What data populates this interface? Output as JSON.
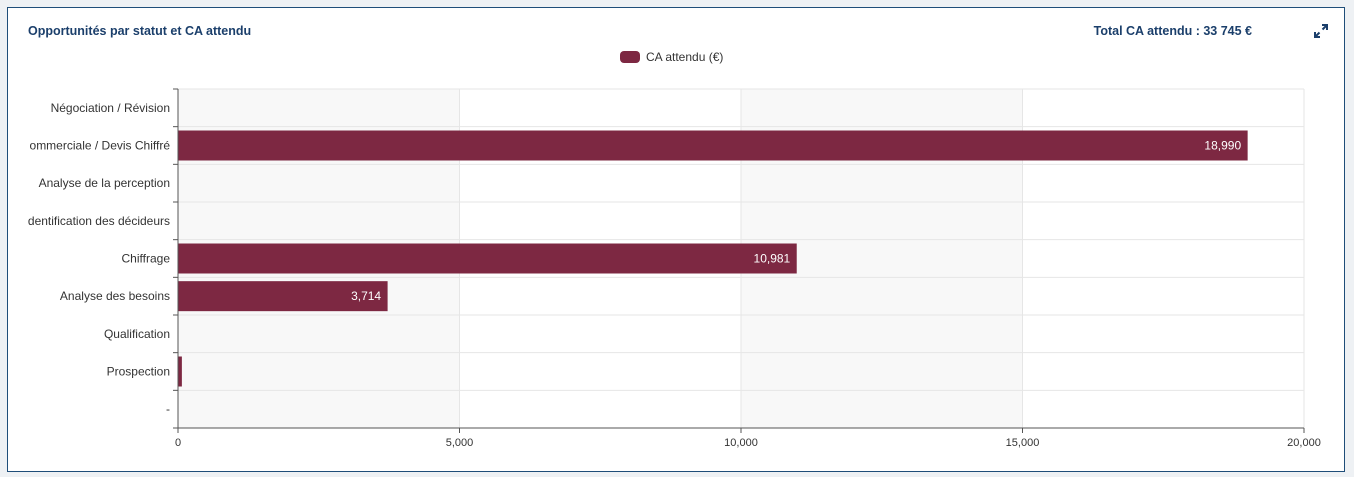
{
  "header": {
    "title": "Opportunités par statut et CA attendu",
    "total": "Total CA attendu : 33 745 €"
  },
  "icons": {
    "expand": "expand-arrows-icon"
  },
  "colors": {
    "bar": "#7d2842",
    "title": "#1b3f6b",
    "grid": "#e6e6e6",
    "band": "#f8f8f8"
  },
  "chart_data": {
    "type": "bar",
    "orientation": "horizontal",
    "categories": [
      "Négociation / Révision",
      "ommerciale / Devis Chiffré",
      "Analyse de la perception",
      "dentification des décideurs",
      "Chiffrage",
      "Analyse des besoins",
      "Qualification",
      "Prospection",
      "-"
    ],
    "series": [
      {
        "name": "CA attendu (€)",
        "values": [
          0,
          18990,
          0,
          0,
          10981,
          3714,
          0,
          60,
          0
        ],
        "labels": [
          "",
          "18,990",
          "",
          "",
          "10,981",
          "3,714",
          "",
          "",
          ""
        ]
      }
    ],
    "xticks": [
      "0",
      "5,000",
      "10,000",
      "15,000",
      "20,000"
    ],
    "xlim": [
      0,
      20000
    ],
    "grid": true,
    "legend_position": "top-center"
  }
}
